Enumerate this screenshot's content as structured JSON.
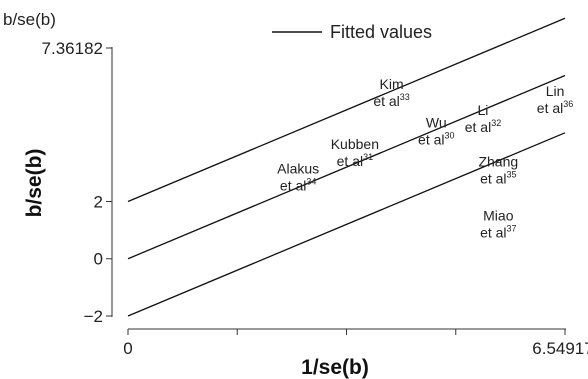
{
  "chart_data": {
    "type": "line",
    "ylabel_top": "b/se(b)",
    "ylabel": "b/se(b)",
    "xlabel": "1/se(b)",
    "legend": {
      "label": "Fitted values",
      "placement": "top"
    },
    "x_ticks": [
      "0",
      "6.54917"
    ],
    "y_ticks": [
      "7.36182",
      "2",
      "0",
      "−2"
    ],
    "xlim": [
      0,
      6.54917
    ],
    "ylim": [
      -2,
      7.36182
    ],
    "series": [
      {
        "name": "Fitted values",
        "x": [
          0,
          6.54917
        ],
        "y": [
          0,
          6.4
        ]
      },
      {
        "x": [
          0,
          6.54917
        ],
        "y": [
          2,
          8.4
        ]
      },
      {
        "x": [
          0,
          6.54917
        ],
        "y": [
          -2,
          4.4
        ]
      }
    ],
    "studies": [
      {
        "name": "Kim",
        "suffix": "et al",
        "ref": "33",
        "x": 3.95,
        "y": 5.65
      },
      {
        "name": "Wu",
        "suffix": "et al",
        "ref": "30",
        "x": 4.62,
        "y": 4.3
      },
      {
        "name": "Li",
        "suffix": "et al",
        "ref": "32",
        "x": 5.32,
        "y": 4.75
      },
      {
        "name": "Lin",
        "suffix": "et al",
        "ref": "36",
        "x": 6.4,
        "y": 5.4
      },
      {
        "name": "Kubben",
        "suffix": "et al",
        "ref": "31",
        "x": 3.4,
        "y": 3.55
      },
      {
        "name": "Alakus",
        "suffix": "et al",
        "ref": "34",
        "x": 2.55,
        "y": 2.7
      },
      {
        "name": "Zhang",
        "suffix": "et al",
        "ref": "35",
        "x": 5.55,
        "y": 2.95
      },
      {
        "name": "Miao",
        "suffix": "et al",
        "ref": "37",
        "x": 5.55,
        "y": 1.05
      }
    ]
  }
}
